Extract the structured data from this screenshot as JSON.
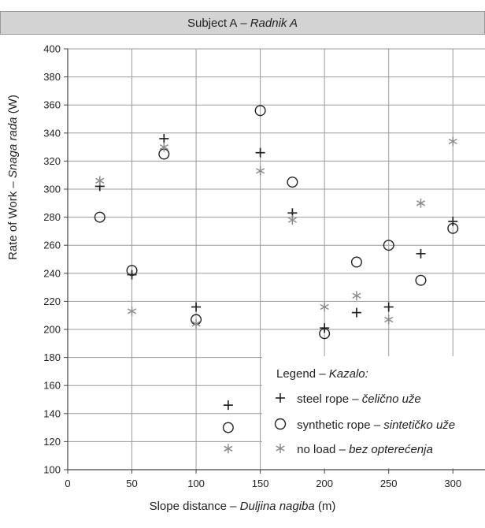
{
  "chart_data": {
    "type": "scatter",
    "title": "Subject A",
    "title_sep": "–",
    "title_alt": "Radnik A",
    "xlabel": "Slope distance",
    "xlabel_sep": "–",
    "xlabel_alt": "Duljina nagiba",
    "xlabel_unit": "(m)",
    "ylabel": "Rate of Work",
    "ylabel_sep": "–",
    "ylabel_alt": "Snaga rada",
    "ylabel_unit": "(W)",
    "xlim": [
      0,
      325
    ],
    "ylim": [
      100,
      400
    ],
    "xticks": [
      0,
      50,
      100,
      150,
      200,
      250,
      300
    ],
    "yticks": [
      100,
      120,
      140,
      160,
      180,
      200,
      220,
      240,
      260,
      280,
      300,
      320,
      340,
      360,
      380,
      400
    ],
    "grid": true,
    "legend": {
      "title": "Legend",
      "title_sep": "–",
      "title_alt": "Kazalo:",
      "placement": "bottom-right"
    },
    "series": [
      {
        "name": "steel rope",
        "sep": "–",
        "name_alt": "čelično uže",
        "marker": "plus",
        "color": "#222222",
        "x": [
          25,
          50,
          75,
          100,
          125,
          150,
          175,
          200,
          225,
          250,
          275,
          300
        ],
        "y": [
          302,
          239,
          336,
          216,
          146,
          326,
          283,
          201,
          212,
          216,
          254,
          277
        ]
      },
      {
        "name": "synthetic rope",
        "sep": "–",
        "name_alt": "sintetičko uže",
        "marker": "circle",
        "color": "#222222",
        "x": [
          25,
          50,
          75,
          100,
          125,
          150,
          175,
          200,
          225,
          250,
          275,
          300
        ],
        "y": [
          280,
          242,
          325,
          207,
          130,
          356,
          305,
          197,
          248,
          260,
          235,
          272
        ]
      },
      {
        "name": "no load",
        "sep": "–",
        "name_alt": "bez opterećenja",
        "marker": "asterisk",
        "color": "#8c8c8c",
        "x": [
          25,
          50,
          75,
          100,
          125,
          150,
          175,
          200,
          225,
          250,
          275,
          300
        ],
        "y": [
          306,
          213,
          330,
          204,
          115,
          313,
          278,
          216,
          224,
          207,
          290,
          334
        ]
      }
    ]
  }
}
